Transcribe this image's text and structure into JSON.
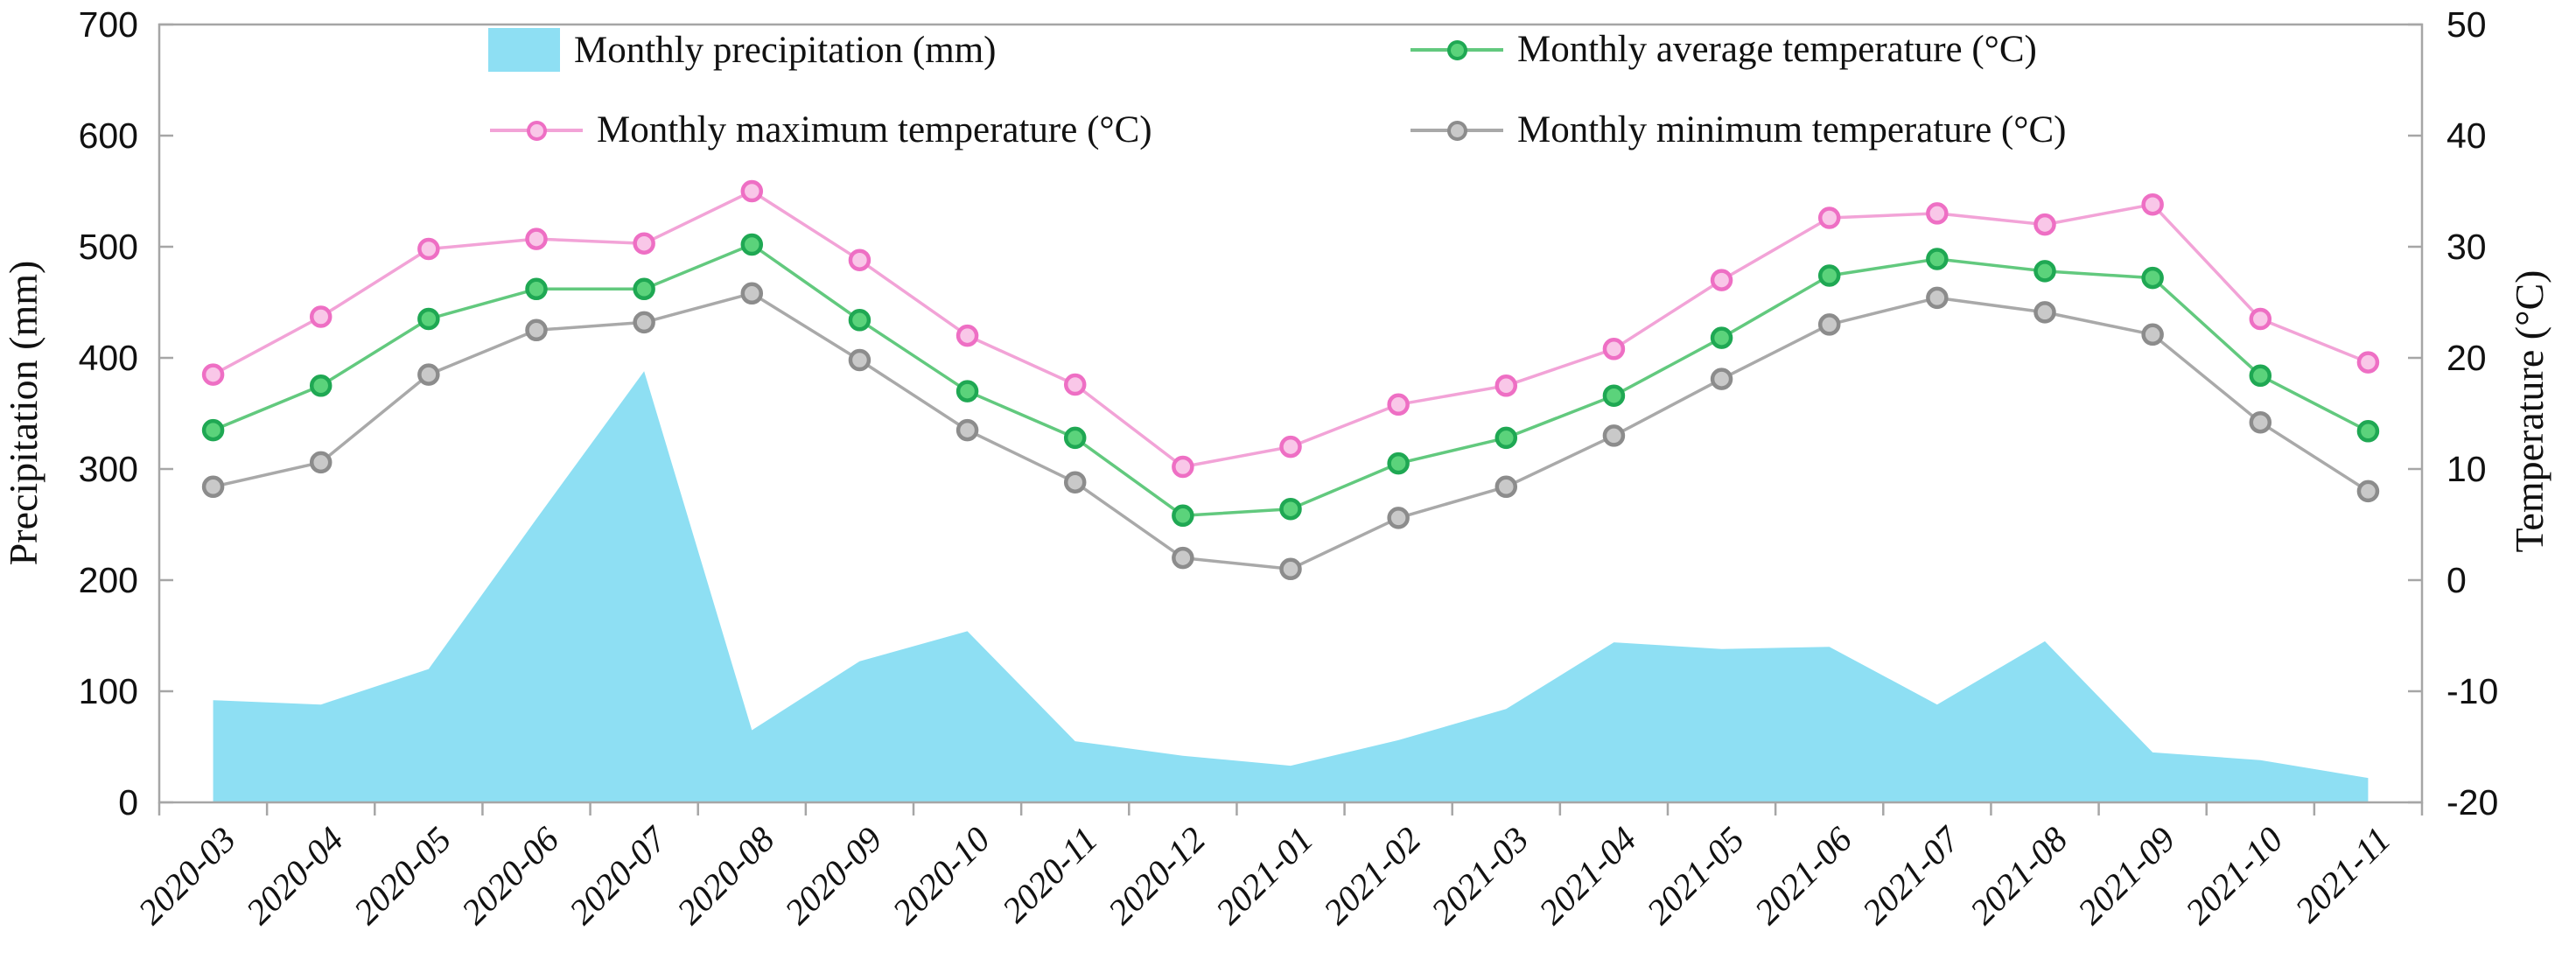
{
  "page": {
    "background": "#ffffff"
  },
  "legend": {
    "items": [
      {
        "label": "Monthly precipitation (mm)",
        "swatch": "area",
        "color": "#8EDFF3"
      },
      {
        "label": "Monthly average temperature (°C)",
        "swatch": "line-marker",
        "color": "#62C97E"
      },
      {
        "label": "Monthly maximum temperature (°C)",
        "swatch": "line-marker",
        "color": "#F2A3D7"
      },
      {
        "label": "Monthly minimum temperature (°C)",
        "swatch": "line-marker",
        "color": "#A9A9A9"
      }
    ]
  },
  "chart_data": {
    "type": "combo",
    "title": "",
    "ylabel_left": "Precipitation (mm)",
    "ylabel_right": "Temperature (°C)",
    "grid": false,
    "legend_position": "top-inside",
    "left_axis": {
      "min": 0,
      "max": 700,
      "step": 100,
      "tick_labels": [
        "0",
        "100",
        "200",
        "300",
        "400",
        "500",
        "600",
        "700"
      ]
    },
    "right_axis": {
      "min": -20,
      "max": 50,
      "step": 10,
      "tick_labels": [
        "-20",
        "-10",
        "0",
        "10",
        "20",
        "30",
        "40",
        "50"
      ]
    },
    "categories": [
      "2020-03",
      "2020-04",
      "2020-05",
      "2020-06",
      "2020-07",
      "2020-08",
      "2020-09",
      "2020-10",
      "2020-11",
      "2020-12",
      "2021-01",
      "2021-02",
      "2021-03",
      "2021-04",
      "2021-05",
      "2021-06",
      "2021-07",
      "2021-08",
      "2021-09",
      "2021-10",
      "2021-11"
    ],
    "series": [
      {
        "name": "Monthly precipitation (mm)",
        "type": "area",
        "axis": "left",
        "color": "#8EDFF3",
        "values": [
          92,
          88,
          120,
          255,
          388,
          65,
          127,
          154,
          55,
          42,
          33,
          56,
          84,
          144,
          138,
          140,
          88,
          145,
          45,
          38,
          22
        ]
      },
      {
        "name": "Monthly minimum temperature (°C)",
        "type": "line",
        "axis": "right",
        "color": "#A9A9A9",
        "marker_stroke": "#8C8C8C",
        "marker_fill": "#C9C9C9",
        "values": [
          8.4,
          10.6,
          18.5,
          22.5,
          23.2,
          25.8,
          19.8,
          13.5,
          8.8,
          2.0,
          1.0,
          5.6,
          8.4,
          13.0,
          18.1,
          23.0,
          25.4,
          24.1,
          22.1,
          14.2,
          8.0
        ]
      },
      {
        "name": "Monthly average temperature (°C)",
        "type": "line",
        "axis": "right",
        "color": "#62C97E",
        "marker_stroke": "#1FA853",
        "marker_fill": "#5BD37B",
        "values": [
          13.5,
          17.5,
          23.5,
          26.2,
          26.2,
          30.2,
          23.4,
          17.0,
          12.8,
          5.8,
          6.4,
          10.5,
          12.8,
          16.6,
          21.8,
          27.4,
          28.9,
          27.8,
          27.2,
          18.4,
          13.4
        ]
      },
      {
        "name": "Monthly maximum temperature (°C)",
        "type": "line",
        "axis": "right",
        "color": "#F2A3D7",
        "marker_stroke": "#EE6FC4",
        "marker_fill": "#F9C7E8",
        "values": [
          18.5,
          23.7,
          29.8,
          30.7,
          30.3,
          35.0,
          28.8,
          22.0,
          17.6,
          10.2,
          12.0,
          15.8,
          17.5,
          20.8,
          27.0,
          32.6,
          33.0,
          32.0,
          33.8,
          23.5,
          19.6
        ]
      }
    ]
  }
}
